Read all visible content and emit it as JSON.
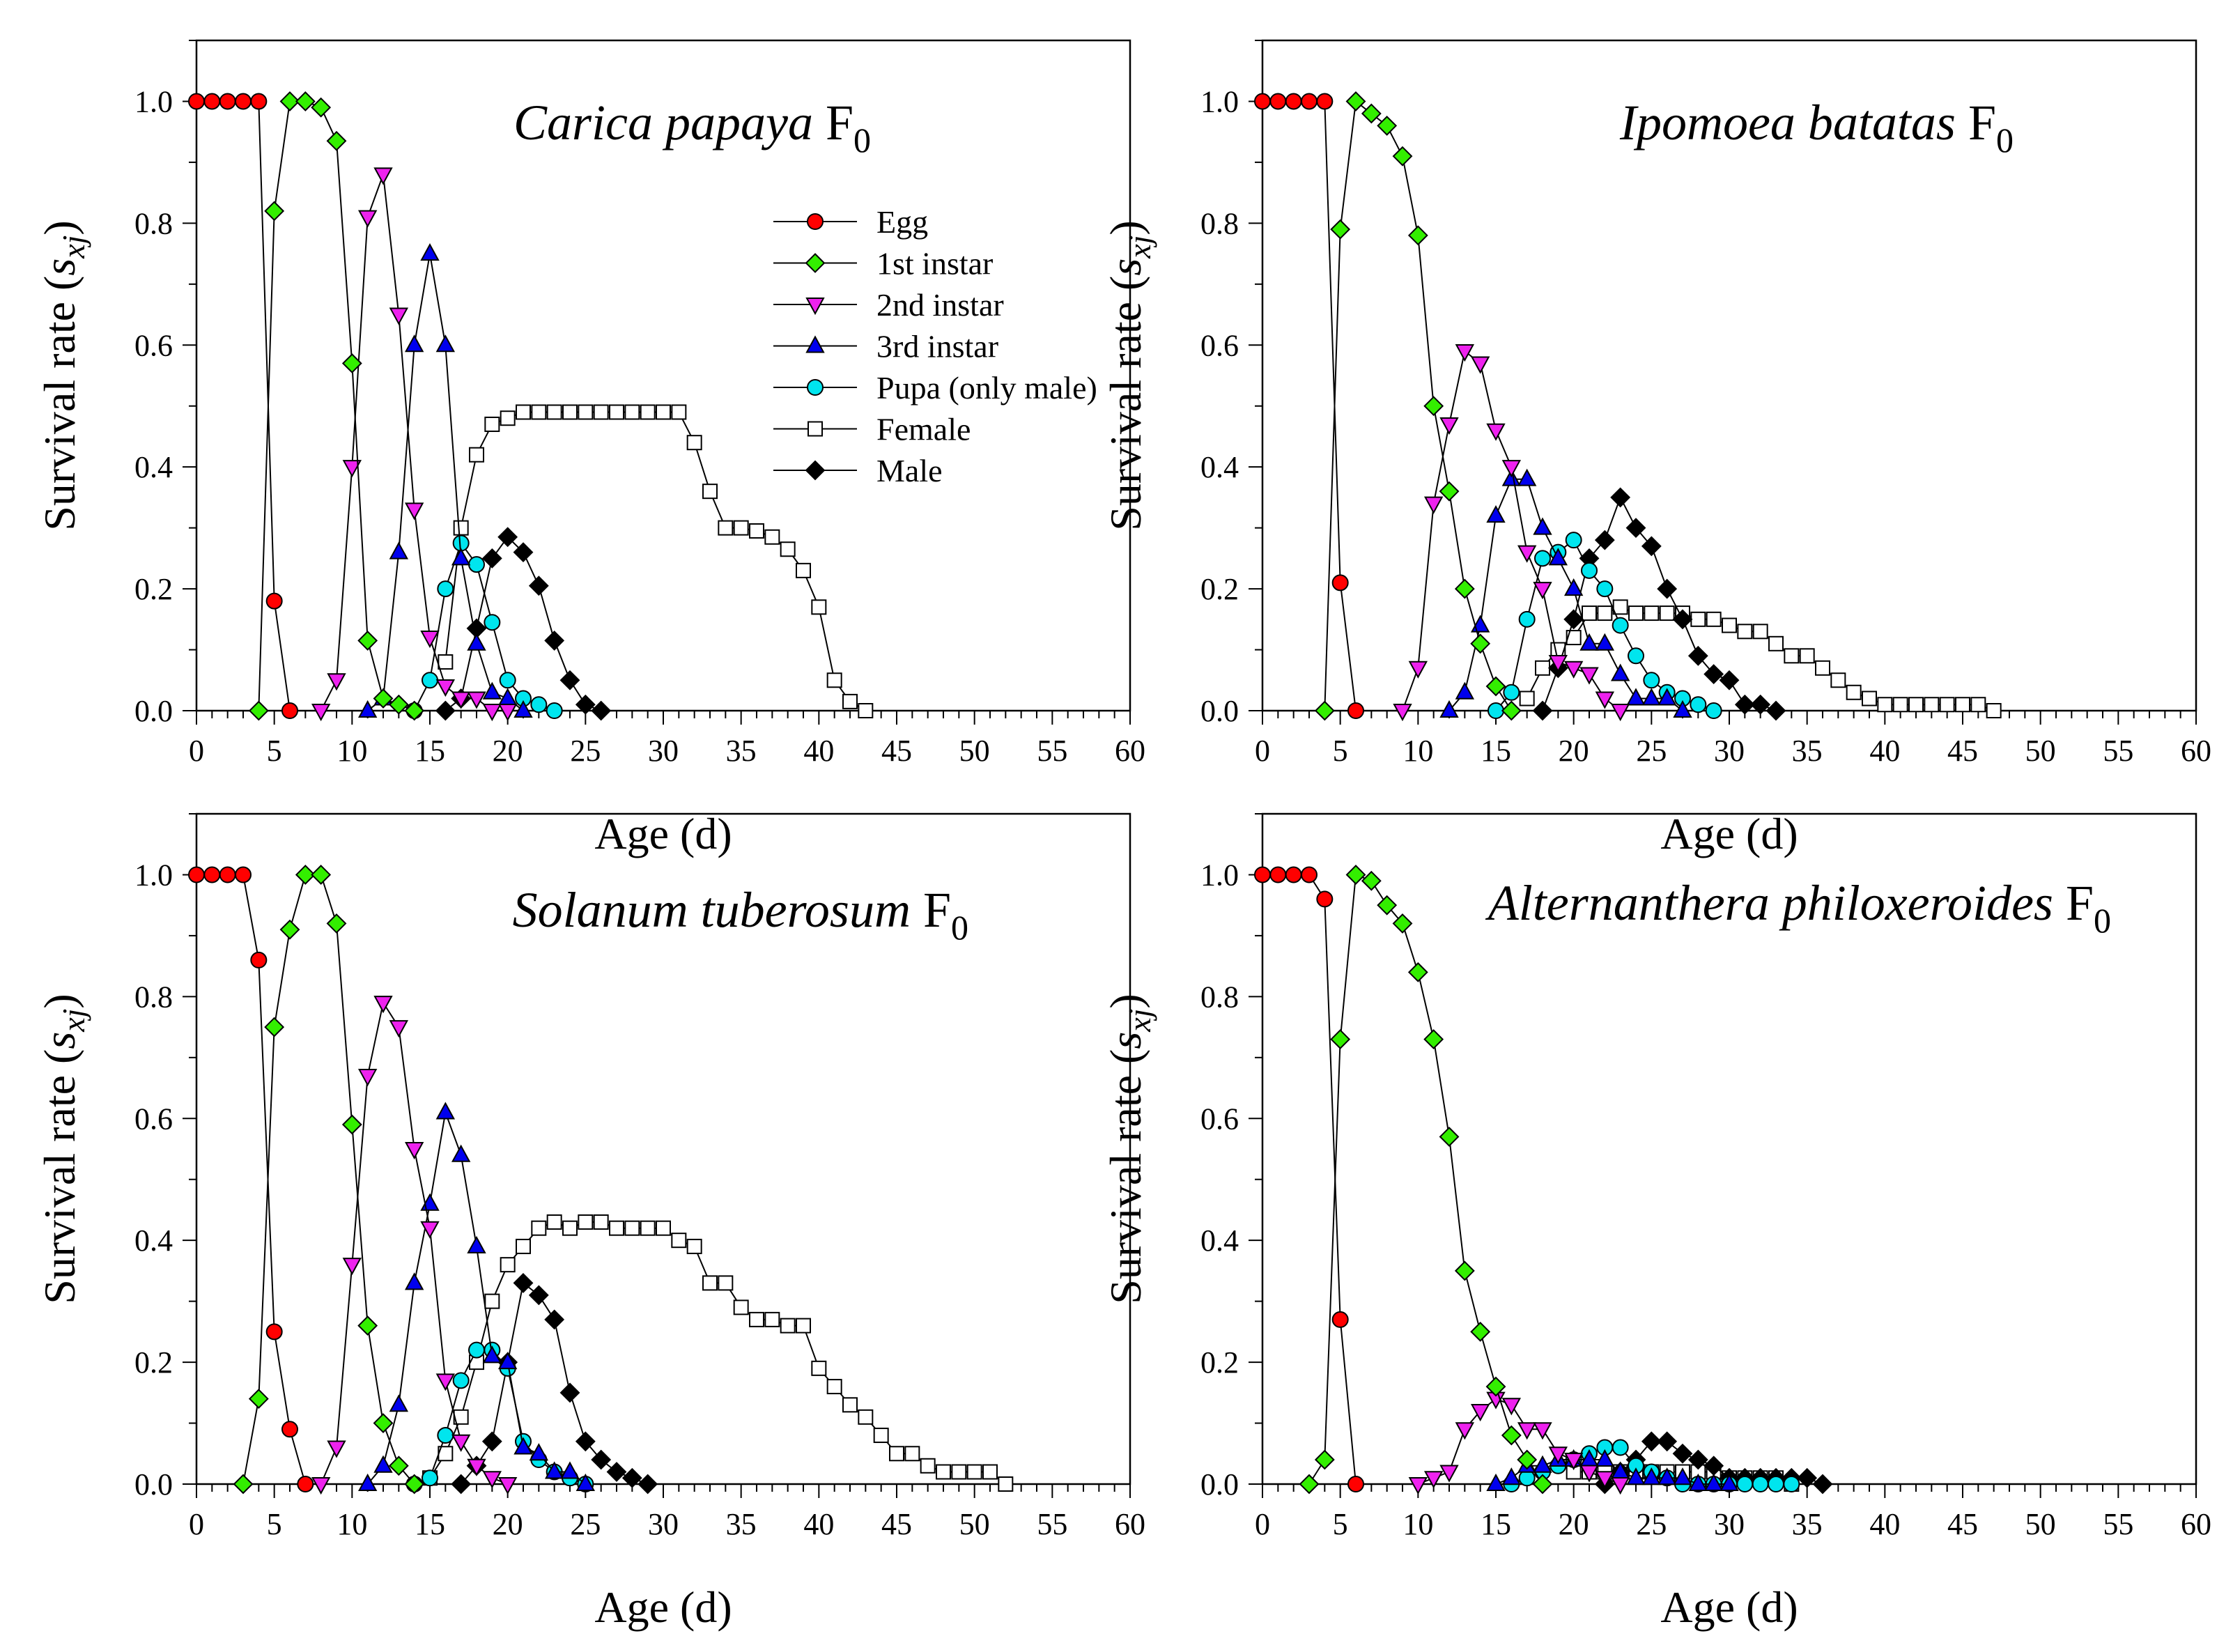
{
  "colors": {
    "egg": "#ff0000",
    "instar1": "#33ee00",
    "instar2": "#ee22ee",
    "instar3": "#0000ee",
    "pupa": "#00e5ee",
    "female": "#ffffff",
    "male": "#000000"
  },
  "axes": {
    "xlabel": "Age (d)",
    "ylabel_prefix": "Survival rate (",
    "ylabel_var": "s",
    "ylabel_sub": "xj",
    "ylabel_suffix": ")",
    "xticks": [
      "0",
      "5",
      "10",
      "15",
      "20",
      "25",
      "30",
      "35",
      "40",
      "45",
      "50",
      "55",
      "60"
    ],
    "yticks": [
      "0.0",
      "0.2",
      "0.4",
      "0.6",
      "0.8",
      "1.0"
    ]
  },
  "legend": {
    "items": [
      {
        "label": "Egg",
        "color": "#ff0000",
        "marker": "circle"
      },
      {
        "label": "1st instar",
        "color": "#33ee00",
        "marker": "diamond"
      },
      {
        "label": "2nd instar",
        "color": "#ee22ee",
        "marker": "triangle-down"
      },
      {
        "label": "3rd instar",
        "color": "#0000ee",
        "marker": "triangle-up"
      },
      {
        "label": "Pupa (only male)",
        "color": "#00e5ee",
        "marker": "circle"
      },
      {
        "label": "Female",
        "color": "#ffffff",
        "marker": "square"
      },
      {
        "label": "Male",
        "color": "#000000",
        "marker": "diamond"
      }
    ]
  },
  "chart_data": [
    {
      "type": "line",
      "title_species": "Carica papaya",
      "title_generation": "F",
      "title_subscript": "0",
      "xlabel": "Age (d)",
      "ylabel": "Survival rate (sxj)",
      "xlim": [
        0,
        60
      ],
      "ylim": [
        0,
        1.1
      ],
      "series": [
        {
          "name": "Egg",
          "x": [
            0,
            1,
            2,
            3,
            4,
            5,
            6
          ],
          "y": [
            1.0,
            1.0,
            1.0,
            1.0,
            1.0,
            0.18,
            0.0
          ]
        },
        {
          "name": "1st instar",
          "x": [
            4,
            5,
            6,
            7,
            8,
            9,
            10,
            11,
            12,
            13,
            14
          ],
          "y": [
            0.0,
            0.82,
            1.0,
            1.0,
            0.99,
            0.935,
            0.57,
            0.115,
            0.02,
            0.01,
            0.0
          ]
        },
        {
          "name": "2nd instar",
          "x": [
            8,
            9,
            10,
            11,
            12,
            13,
            14,
            15,
            16,
            17,
            18,
            19,
            20
          ],
          "y": [
            0.0,
            0.05,
            0.4,
            0.81,
            0.88,
            0.65,
            0.33,
            0.12,
            0.04,
            0.02,
            0.02,
            0.0,
            0.0
          ]
        },
        {
          "name": "3rd instar",
          "x": [
            11,
            12,
            13,
            14,
            15,
            16,
            17,
            18,
            19,
            20,
            21
          ],
          "y": [
            0.0,
            0.02,
            0.26,
            0.6,
            0.75,
            0.6,
            0.25,
            0.11,
            0.03,
            0.02,
            0.0
          ]
        },
        {
          "name": "Pupa (only male)",
          "x": [
            14,
            15,
            16,
            17,
            18,
            19,
            20,
            21,
            22,
            23
          ],
          "y": [
            0.0,
            0.05,
            0.2,
            0.275,
            0.24,
            0.145,
            0.05,
            0.02,
            0.01,
            0.0
          ]
        },
        {
          "name": "Female",
          "x": [
            16,
            17,
            18,
            19,
            20,
            21,
            22,
            23,
            24,
            25,
            26,
            27,
            28,
            29,
            30,
            31,
            32,
            33,
            34,
            35,
            36,
            37,
            38,
            39,
            40,
            41,
            42,
            43
          ],
          "y": [
            0.08,
            0.3,
            0.42,
            0.47,
            0.48,
            0.49,
            0.49,
            0.49,
            0.49,
            0.49,
            0.49,
            0.49,
            0.49,
            0.49,
            0.49,
            0.49,
            0.44,
            0.36,
            0.3,
            0.3,
            0.295,
            0.285,
            0.265,
            0.23,
            0.17,
            0.05,
            0.015,
            0.0
          ]
        },
        {
          "name": "Male",
          "x": [
            16,
            17,
            18,
            19,
            20,
            21,
            22,
            23,
            24,
            25,
            26
          ],
          "y": [
            0.0,
            0.02,
            0.135,
            0.25,
            0.285,
            0.26,
            0.205,
            0.115,
            0.05,
            0.01,
            0.0
          ]
        }
      ]
    },
    {
      "type": "line",
      "title_species": "Ipomoea batatas",
      "title_generation": "F",
      "title_subscript": "0",
      "xlabel": "Age (d)",
      "ylabel": "Survival rate (sxj)",
      "xlim": [
        0,
        60
      ],
      "ylim": [
        0,
        1.1
      ],
      "series": [
        {
          "name": "Egg",
          "x": [
            0,
            1,
            2,
            3,
            4,
            5,
            6
          ],
          "y": [
            1.0,
            1.0,
            1.0,
            1.0,
            1.0,
            0.21,
            0.0
          ]
        },
        {
          "name": "1st instar",
          "x": [
            4,
            5,
            6,
            7,
            8,
            9,
            10,
            11,
            12,
            13,
            14,
            15,
            16
          ],
          "y": [
            0.0,
            0.79,
            1.0,
            0.98,
            0.96,
            0.91,
            0.78,
            0.5,
            0.36,
            0.2,
            0.11,
            0.04,
            0.0
          ]
        },
        {
          "name": "2nd instar",
          "x": [
            9,
            10,
            11,
            12,
            13,
            14,
            15,
            16,
            17,
            18,
            19,
            20,
            21,
            22,
            23
          ],
          "y": [
            0.0,
            0.07,
            0.34,
            0.47,
            0.59,
            0.57,
            0.46,
            0.4,
            0.26,
            0.2,
            0.08,
            0.07,
            0.06,
            0.02,
            0.0
          ]
        },
        {
          "name": "3rd instar",
          "x": [
            12,
            13,
            14,
            15,
            16,
            17,
            18,
            19,
            20,
            21,
            22,
            23,
            24,
            25,
            26,
            27
          ],
          "y": [
            0.0,
            0.03,
            0.14,
            0.32,
            0.38,
            0.38,
            0.3,
            0.25,
            0.2,
            0.11,
            0.11,
            0.06,
            0.02,
            0.02,
            0.02,
            0.0
          ]
        },
        {
          "name": "Pupa (only male)",
          "x": [
            15,
            16,
            17,
            18,
            19,
            20,
            21,
            22,
            23,
            24,
            25,
            26,
            27,
            28,
            29
          ],
          "y": [
            0.0,
            0.03,
            0.15,
            0.25,
            0.26,
            0.28,
            0.23,
            0.2,
            0.14,
            0.09,
            0.05,
            0.03,
            0.02,
            0.01,
            0.0
          ]
        },
        {
          "name": "Female",
          "x": [
            17,
            18,
            19,
            20,
            21,
            22,
            23,
            24,
            25,
            26,
            27,
            28,
            29,
            30,
            31,
            32,
            33,
            34,
            35,
            36,
            37,
            38,
            39,
            40,
            41,
            42,
            43,
            44,
            45,
            46,
            47
          ],
          "y": [
            0.02,
            0.07,
            0.1,
            0.12,
            0.16,
            0.16,
            0.17,
            0.16,
            0.16,
            0.16,
            0.16,
            0.15,
            0.15,
            0.14,
            0.13,
            0.13,
            0.11,
            0.09,
            0.09,
            0.07,
            0.05,
            0.03,
            0.02,
            0.01,
            0.01,
            0.01,
            0.01,
            0.01,
            0.01,
            0.01,
            0.0
          ]
        },
        {
          "name": "Male",
          "x": [
            18,
            19,
            20,
            21,
            22,
            23,
            24,
            25,
            26,
            27,
            28,
            29,
            30,
            31,
            32,
            33
          ],
          "y": [
            0.0,
            0.07,
            0.15,
            0.25,
            0.28,
            0.35,
            0.3,
            0.27,
            0.2,
            0.15,
            0.09,
            0.06,
            0.05,
            0.01,
            0.01,
            0.0
          ]
        }
      ]
    },
    {
      "type": "line",
      "title_species": "Solanum tuberosum",
      "title_generation": "F",
      "title_subscript": "0",
      "xlabel": "Age (d)",
      "ylabel": "Survival rate (sxj)",
      "xlim": [
        0,
        60
      ],
      "ylim": [
        0,
        1.1
      ],
      "series": [
        {
          "name": "Egg",
          "x": [
            0,
            1,
            2,
            3,
            4,
            5,
            6,
            7
          ],
          "y": [
            1.0,
            1.0,
            1.0,
            1.0,
            0.86,
            0.25,
            0.09,
            0.0
          ]
        },
        {
          "name": "1st instar",
          "x": [
            3,
            4,
            5,
            6,
            7,
            8,
            9,
            10,
            11,
            12,
            13,
            14
          ],
          "y": [
            0.0,
            0.14,
            0.75,
            0.91,
            1.0,
            1.0,
            0.92,
            0.59,
            0.26,
            0.1,
            0.03,
            0.0
          ]
        },
        {
          "name": "2nd instar",
          "x": [
            8,
            9,
            10,
            11,
            12,
            13,
            14,
            15,
            16,
            17,
            18,
            19,
            20
          ],
          "y": [
            0.0,
            0.06,
            0.36,
            0.67,
            0.79,
            0.75,
            0.55,
            0.42,
            0.17,
            0.07,
            0.03,
            0.01,
            0.0
          ]
        },
        {
          "name": "3rd instar",
          "x": [
            11,
            12,
            13,
            14,
            15,
            16,
            17,
            18,
            19,
            20,
            21,
            22,
            23,
            24,
            25
          ],
          "y": [
            0.0,
            0.03,
            0.13,
            0.33,
            0.46,
            0.61,
            0.54,
            0.39,
            0.21,
            0.2,
            0.06,
            0.05,
            0.02,
            0.02,
            0.0
          ]
        },
        {
          "name": "Pupa (only male)",
          "x": [
            14,
            15,
            16,
            17,
            18,
            19,
            20,
            21,
            22,
            23,
            24,
            25
          ],
          "y": [
            0.0,
            0.01,
            0.08,
            0.17,
            0.22,
            0.22,
            0.19,
            0.07,
            0.04,
            0.02,
            0.01,
            0.0
          ]
        },
        {
          "name": "Female",
          "x": [
            15,
            16,
            17,
            18,
            19,
            20,
            21,
            22,
            23,
            24,
            25,
            26,
            27,
            28,
            29,
            30,
            31,
            32,
            33,
            34,
            35,
            36,
            37,
            38,
            39,
            40,
            41,
            42,
            43,
            44,
            45,
            46,
            47,
            48,
            49,
            50,
            51,
            52
          ],
          "y": [
            0.01,
            0.05,
            0.11,
            0.2,
            0.3,
            0.36,
            0.39,
            0.42,
            0.43,
            0.42,
            0.43,
            0.43,
            0.42,
            0.42,
            0.42,
            0.42,
            0.4,
            0.39,
            0.33,
            0.33,
            0.29,
            0.27,
            0.27,
            0.26,
            0.26,
            0.19,
            0.16,
            0.13,
            0.11,
            0.08,
            0.05,
            0.05,
            0.03,
            0.02,
            0.02,
            0.02,
            0.02,
            0.0
          ]
        },
        {
          "name": "Male",
          "x": [
            17,
            18,
            19,
            20,
            21,
            22,
            23,
            24,
            25,
            26,
            27,
            28,
            29
          ],
          "y": [
            0.0,
            0.03,
            0.07,
            0.2,
            0.33,
            0.31,
            0.27,
            0.15,
            0.07,
            0.04,
            0.02,
            0.01,
            0.0
          ]
        }
      ]
    },
    {
      "type": "line",
      "title_species": "Alternanthera philoxeroides",
      "title_generation": "F",
      "title_subscript": "0",
      "xlabel": "Age (d)",
      "ylabel": "Survival rate (sxj)",
      "xlim": [
        0,
        60
      ],
      "ylim": [
        0,
        1.1
      ],
      "series": [
        {
          "name": "Egg",
          "x": [
            0,
            1,
            2,
            3,
            4,
            5,
            6
          ],
          "y": [
            1.0,
            1.0,
            1.0,
            1.0,
            0.96,
            0.27,
            0.0
          ]
        },
        {
          "name": "1st instar",
          "x": [
            3,
            4,
            5,
            6,
            7,
            8,
            9,
            10,
            11,
            12,
            13,
            14,
            15,
            16,
            17,
            18
          ],
          "y": [
            0.0,
            0.04,
            0.73,
            1.0,
            0.99,
            0.95,
            0.92,
            0.84,
            0.73,
            0.57,
            0.35,
            0.25,
            0.16,
            0.08,
            0.04,
            0.0
          ]
        },
        {
          "name": "2nd instar",
          "x": [
            10,
            11,
            12,
            13,
            14,
            15,
            16,
            17,
            18,
            19,
            20,
            21,
            22,
            23
          ],
          "y": [
            0.0,
            0.01,
            0.02,
            0.09,
            0.12,
            0.14,
            0.13,
            0.09,
            0.09,
            0.05,
            0.04,
            0.02,
            0.01,
            0.0
          ]
        },
        {
          "name": "3rd instar",
          "x": [
            15,
            16,
            17,
            18,
            19,
            20,
            21,
            22,
            23,
            24,
            25,
            26,
            27,
            28,
            29,
            30
          ],
          "y": [
            0.0,
            0.01,
            0.03,
            0.03,
            0.04,
            0.04,
            0.04,
            0.04,
            0.02,
            0.01,
            0.01,
            0.01,
            0.01,
            0.0,
            0.0,
            0.0
          ]
        },
        {
          "name": "Pupa (only male)",
          "x": [
            16,
            17,
            18,
            19,
            20,
            21,
            22,
            23,
            24,
            25,
            26,
            27,
            28,
            29,
            30,
            31,
            32,
            33,
            34
          ],
          "y": [
            0.0,
            0.01,
            0.02,
            0.03,
            0.04,
            0.05,
            0.06,
            0.06,
            0.03,
            0.02,
            0.01,
            0.0,
            0.0,
            0.0,
            0.0,
            0.0,
            0.0,
            0.0,
            0.0
          ]
        },
        {
          "name": "Female",
          "x": [
            20,
            21,
            22,
            23,
            24,
            25,
            26,
            27,
            28,
            29,
            30,
            31,
            32,
            33,
            34
          ],
          "y": [
            0.02,
            0.02,
            0.02,
            0.02,
            0.02,
            0.02,
            0.02,
            0.02,
            0.02,
            0.02,
            0.01,
            0.01,
            0.01,
            0.01,
            0.0
          ]
        },
        {
          "name": "Male",
          "x": [
            22,
            23,
            24,
            25,
            26,
            27,
            28,
            29,
            30,
            31,
            32,
            33,
            34,
            35,
            36
          ],
          "y": [
            0.0,
            0.02,
            0.04,
            0.07,
            0.07,
            0.05,
            0.04,
            0.03,
            0.01,
            0.01,
            0.01,
            0.01,
            0.01,
            0.01,
            0.0
          ]
        }
      ]
    }
  ]
}
